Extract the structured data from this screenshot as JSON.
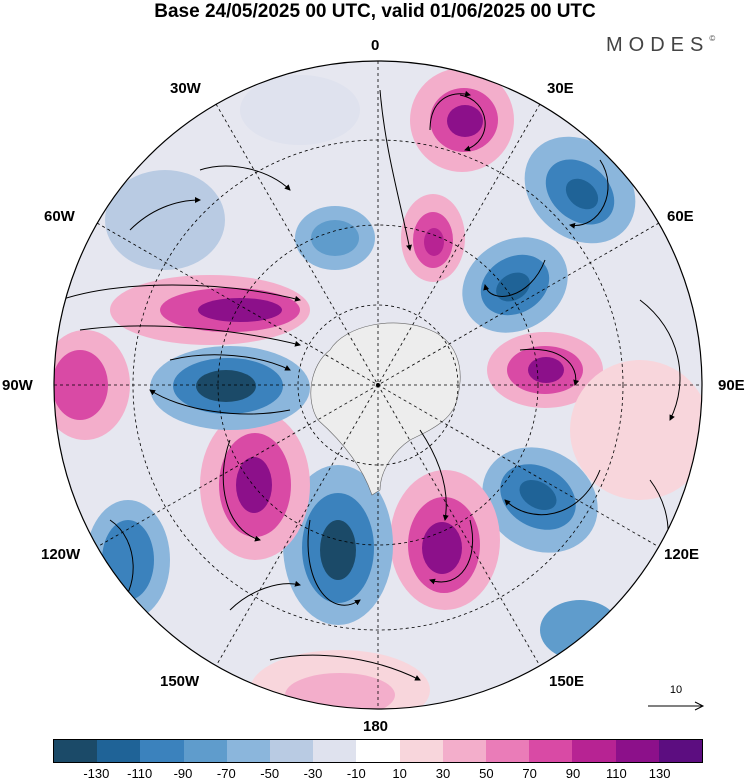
{
  "title": "Base 24/05/2025 00 UTC, valid 01/06/2025 00 UTC",
  "brand": {
    "name": "MODES",
    "mark": "©"
  },
  "map": {
    "projection": "south polar stereographic",
    "longitude_labels": {
      "lon_0": "0",
      "lon_30e": "30E",
      "lon_60e": "60E",
      "lon_90e": "90E",
      "lon_120e": "120E",
      "lon_150e": "150E",
      "lon_180": "180",
      "lon_150w": "150W",
      "lon_120w": "120W",
      "lon_90w": "90W",
      "lon_60w": "60W",
      "lon_30w": "30W"
    },
    "reference_vector": {
      "label": "10"
    },
    "anomaly_centers": [
      {
        "sign": "positive",
        "strength": "strong",
        "region": "south of Africa (~30E)"
      },
      {
        "sign": "negative",
        "strength": "strong",
        "region": "southern Indian Ocean (~45E)"
      },
      {
        "sign": "positive",
        "strength": "moderate",
        "region": "~10E near Antarctica"
      },
      {
        "sign": "negative",
        "strength": "moderate",
        "region": "~20W near Antarctica"
      },
      {
        "sign": "negative",
        "strength": "strong",
        "region": "~55E"
      },
      {
        "sign": "positive",
        "strength": "strong",
        "region": "~90E"
      },
      {
        "sign": "negative",
        "strength": "strong",
        "region": "~120E"
      },
      {
        "sign": "positive",
        "strength": "strong",
        "region": "~160E"
      },
      {
        "sign": "negative",
        "strength": "strong",
        "region": "~165W"
      },
      {
        "sign": "positive",
        "strength": "strong",
        "region": "~135W"
      },
      {
        "sign": "negative",
        "strength": "strong",
        "region": "~95W"
      },
      {
        "sign": "positive",
        "strength": "strong",
        "region": "~70W South America"
      },
      {
        "sign": "positive",
        "strength": "moderate",
        "region": "~90W outer ring"
      },
      {
        "sign": "negative",
        "strength": "moderate",
        "region": "~115W outer ring"
      },
      {
        "sign": "positive",
        "strength": "weak",
        "region": "~105E outer ring"
      },
      {
        "sign": "positive",
        "strength": "moderate",
        "region": "~180 outer ring"
      }
    ]
  },
  "colorbar": {
    "colors": [
      "#1b4a68",
      "#1f6397",
      "#3b82bd",
      "#5f9ccc",
      "#8bb6dc",
      "#b9cbe3",
      "#dfe2ee",
      "#ffffff",
      "#f8d6dc",
      "#f3aecb",
      "#ea7cb8",
      "#d94aa5",
      "#b72393",
      "#8c108a",
      "#5c0d80"
    ],
    "tick_labels": [
      "-130",
      "-110",
      "-90",
      "-70",
      "-50",
      "-30",
      "-10",
      "10",
      "30",
      "50",
      "70",
      "90",
      "110",
      "130"
    ]
  }
}
